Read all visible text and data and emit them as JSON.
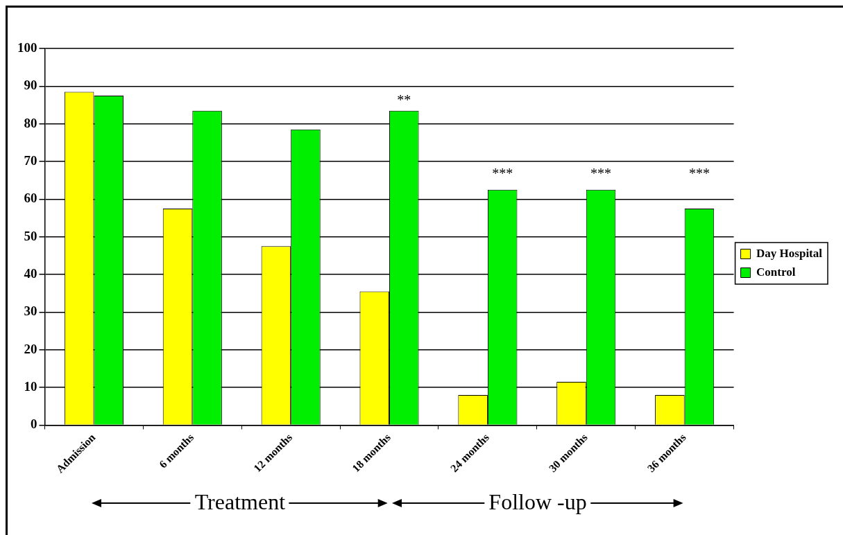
{
  "chart_data": {
    "type": "bar",
    "categories": [
      "Admission",
      "6 months",
      "12 months",
      "18 months",
      "24 months",
      "30 months",
      "36 months"
    ],
    "series": [
      {
        "name": "Day Hospital",
        "color": "#ffff00",
        "values": [
          88.5,
          57.5,
          47.5,
          35.5,
          8,
          11.5,
          8
        ]
      },
      {
        "name": "Control",
        "color": "#00ee00",
        "values": [
          87.5,
          83.5,
          78.5,
          83.5,
          62.5,
          62.5,
          57.5
        ]
      }
    ],
    "ylim": [
      0,
      100
    ],
    "yticks": [
      0,
      10,
      20,
      30,
      40,
      50,
      60,
      70,
      80,
      90,
      100
    ],
    "grid": "y",
    "legend": "right",
    "annotations": [
      "**",
      "***",
      "***",
      "***",
      "Treatment",
      "Follow -up"
    ]
  }
}
